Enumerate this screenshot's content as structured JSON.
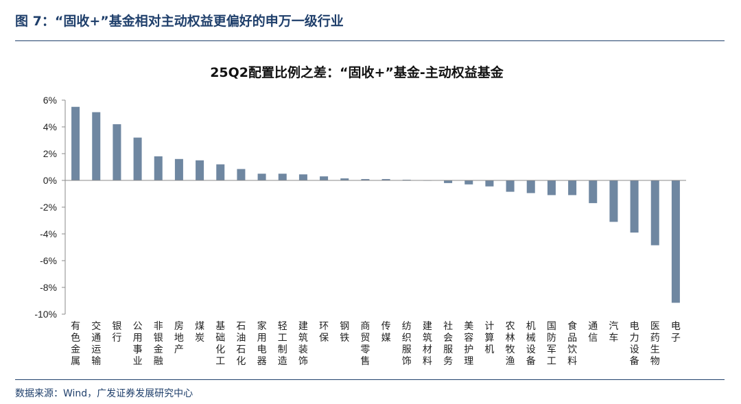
{
  "figure_title": "图 7：“固收+”基金相对主动权益更偏好的申万一级行业",
  "source": "数据来源：Wind，广发证券发展研究中心",
  "colors": {
    "bar": "#6f87a1",
    "accent": "#1f3f6b",
    "axis": "#8a8a8a"
  },
  "chart_data": {
    "type": "bar",
    "title": "25Q2配置比例之差：“固收+”基金-主动权益基金",
    "xlabel": "",
    "ylabel": "",
    "ylim": [
      -10,
      6
    ],
    "yticks": [
      6,
      4,
      2,
      0,
      -2,
      -4,
      -6,
      -8,
      -10
    ],
    "ytick_labels": [
      "6%",
      "4%",
      "2%",
      "0%",
      "-2%",
      "-4%",
      "-6%",
      "-8%",
      "-10%"
    ],
    "grid": false,
    "categories": [
      "有色金属",
      "交通运输",
      "银行",
      "公用事业",
      "非银金融",
      "房地产",
      "煤炭",
      "基础化工",
      "石油石化",
      "家用电器",
      "轻工制造",
      "建筑装饰",
      "环保",
      "钢铁",
      "商贸零售",
      "传媒",
      "纺织服饰",
      "建筑材料",
      "社会服务",
      "美容护理",
      "计算机",
      "农林牧渔",
      "机械设备",
      "国防军工",
      "食品饮料",
      "通信",
      "汽车",
      "电力设备",
      "医药生物",
      "电子"
    ],
    "values": [
      5.5,
      5.1,
      4.2,
      3.2,
      1.8,
      1.6,
      1.5,
      1.2,
      0.85,
      0.5,
      0.5,
      0.45,
      0.3,
      0.15,
      0.1,
      0.1,
      0.05,
      -0.02,
      -0.2,
      -0.3,
      -0.45,
      -0.85,
      -0.95,
      -1.1,
      -1.1,
      -1.7,
      -3.1,
      -3.9,
      -4.85,
      -9.15
    ]
  }
}
